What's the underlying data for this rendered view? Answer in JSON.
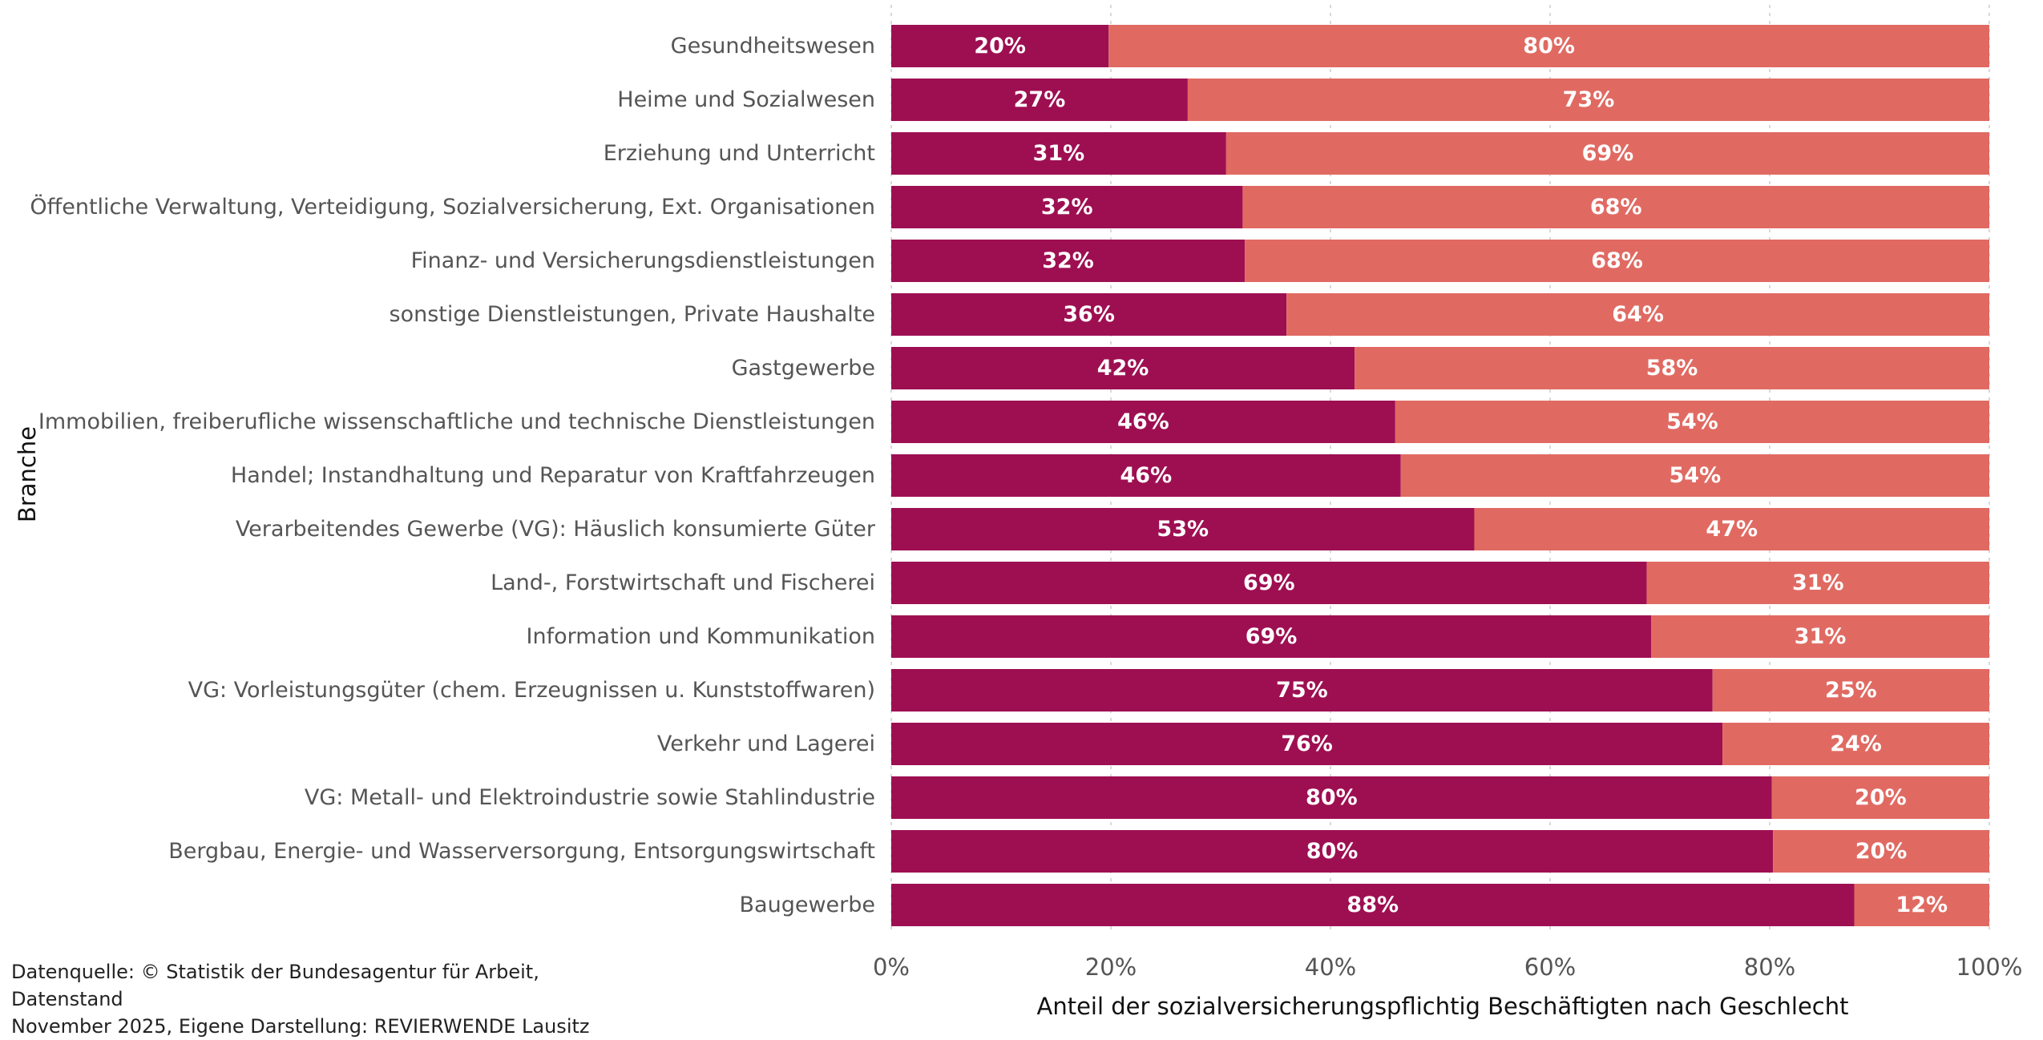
{
  "chart_data": {
    "type": "bar",
    "orientation": "horizontal",
    "stacked": true,
    "xlabel": "Anteil der sozialversicherungspflichtig Beschäftigten nach Geschlecht",
    "ylabel": "Branche",
    "xlim": [
      0,
      100
    ],
    "x_ticks": [
      "0%",
      "20%",
      "40%",
      "60%",
      "80%",
      "100%"
    ],
    "x_tick_values": [
      0,
      20,
      40,
      60,
      80,
      100
    ],
    "grid": "vertical dotted",
    "legend": "none",
    "categories": [
      "Gesundheitswesen",
      "Heime und Sozialwesen",
      "Erziehung und Unterricht",
      "Öffentliche Verwaltung, Verteidigung, Sozialversicherung, Ext. Organisationen",
      "Finanz- und Versicherungsdienstleistungen",
      "sonstige Dienstleistungen, Private Haushalte",
      "Gastgewerbe",
      "Immobilien, freiberufliche wissenschaftliche und technische Dienstleistungen",
      "Handel; Instandhaltung und Reparatur von Kraftfahrzeugen",
      "Verarbeitendes Gewerbe (VG): Häuslich konsumierte Güter",
      "Land-, Forstwirtschaft und Fischerei",
      "Information und Kommunikation",
      "VG: Vorleistungsgüter (chem. Erzeugnissen u. Kunststoffwaren)",
      "Verkehr und Lagerei",
      "VG: Metall- und Elektroindustrie sowie Stahlindustrie",
      "Bergbau, Energie- und Wasserversorgung, Entsorgungswirtschaft",
      "Baugewerbe"
    ],
    "series": [
      {
        "color": "#9e0f52",
        "values": [
          19.8,
          27.0,
          30.5,
          32.0,
          32.2,
          36.0,
          42.2,
          45.9,
          46.4,
          53.1,
          68.8,
          69.2,
          74.8,
          75.7,
          80.2,
          80.3,
          87.7
        ],
        "labels": [
          "20%",
          "27%",
          "31%",
          "32%",
          "32%",
          "36%",
          "42%",
          "46%",
          "46%",
          "53%",
          "69%",
          "69%",
          "75%",
          "76%",
          "80%",
          "80%",
          "88%"
        ]
      },
      {
        "color": "#e06a62",
        "values": [
          80.2,
          73.0,
          69.5,
          68.0,
          67.8,
          64.0,
          57.8,
          54.1,
          53.6,
          46.9,
          31.2,
          30.8,
          25.2,
          24.3,
          19.8,
          19.7,
          12.3
        ],
        "labels": [
          "80%",
          "73%",
          "69%",
          "68%",
          "68%",
          "64%",
          "58%",
          "54%",
          "54%",
          "47%",
          "31%",
          "31%",
          "25%",
          "24%",
          "20%",
          "20%",
          "12%"
        ]
      }
    ]
  },
  "source": {
    "line1": "Datenquelle: © Statistik der Bundesagentur für Arbeit, Datenstand",
    "line2": "November 2025, Eigene Darstellung: REVIERWENDE Lausitz"
  }
}
